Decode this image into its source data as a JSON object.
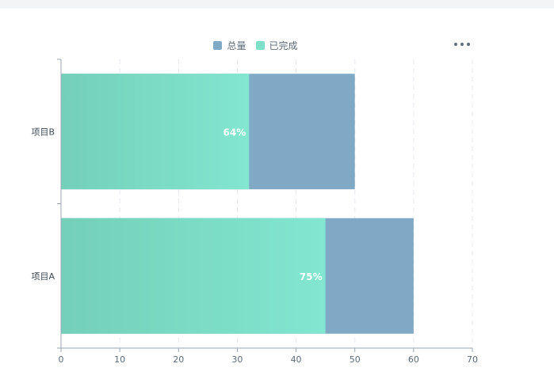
{
  "chart_data": {
    "type": "bar",
    "orientation": "horizontal",
    "categories": [
      "项目B",
      "项目A"
    ],
    "series": [
      {
        "name": "总量",
        "values": [
          50,
          60
        ],
        "color": "#7fa9c4"
      },
      {
        "name": "已完成",
        "values": [
          32,
          45
        ],
        "color": "#7ee0c8"
      }
    ],
    "data_labels": [
      "64%",
      "75%"
    ],
    "xticks": [
      "0",
      "10",
      "20",
      "30",
      "40",
      "50",
      "60",
      "70"
    ],
    "xlim": [
      0,
      70
    ],
    "grid": "vertical dashed",
    "legend_position": "top-center",
    "title": "",
    "xlabel": "",
    "ylabel": ""
  },
  "toolbar": {
    "more_icon": "more-horizontal-icon"
  }
}
